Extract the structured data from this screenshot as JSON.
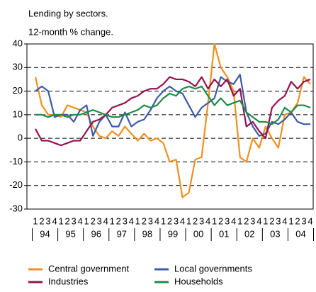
{
  "chart_data": {
    "type": "line",
    "title": "Lending by sectors.",
    "subtitle": "12-month % change.",
    "categories": [
      "1",
      "2",
      "3",
      "4",
      "1",
      "2",
      "3",
      "4",
      "1",
      "2",
      "3",
      "4",
      "1",
      "2",
      "3",
      "4",
      "1",
      "2",
      "3",
      "4",
      "1",
      "2",
      "3",
      "4",
      "1",
      "2",
      "3",
      "4",
      "1",
      "2",
      "3",
      "4",
      "1",
      "2",
      "3",
      "4",
      "1",
      "2",
      "3",
      "4",
      "1",
      "2",
      "3",
      "4"
    ],
    "year_labels": [
      "94",
      "95",
      "96",
      "97",
      "98",
      "99",
      "00",
      "01",
      "02",
      "03",
      "04"
    ],
    "ylim": [
      -30,
      40
    ],
    "yticks": [
      -30,
      -20,
      -10,
      0,
      10,
      20,
      30,
      40
    ],
    "grid": true,
    "series": [
      {
        "name": "Central government",
        "color": "#f0901e",
        "values": [
          26,
          14,
          10,
          10,
          9,
          14,
          13,
          12,
          11,
          5,
          1,
          0,
          3,
          1,
          5,
          2,
          -1,
          2,
          -1,
          0,
          -2,
          -10,
          -9,
          -25,
          -23,
          -9,
          -8,
          15,
          40,
          30,
          26,
          20,
          -8,
          -10,
          0,
          -4,
          5,
          0,
          -4,
          10,
          11,
          15,
          26,
          23
        ]
      },
      {
        "name": "Local governments",
        "color": "#3c5aa8",
        "values": [
          20,
          22,
          20,
          9,
          10,
          10,
          7,
          12,
          14,
          1,
          7,
          10,
          5,
          5,
          11,
          5,
          7,
          8,
          12,
          17,
          20,
          22,
          20,
          19,
          14,
          9,
          13,
          15,
          17,
          26,
          24,
          23,
          27,
          11,
          5,
          1,
          2,
          7,
          6,
          8,
          11,
          7,
          6,
          6
        ]
      },
      {
        "name": "Industries",
        "color": "#96124f",
        "values": [
          4,
          -1,
          -1,
          -2,
          -3,
          -2,
          -1,
          -1,
          3,
          7,
          8,
          10,
          13,
          14,
          15,
          17,
          18,
          20,
          21,
          21,
          23,
          26,
          25,
          25,
          24,
          22,
          26,
          21,
          25,
          22,
          25,
          18,
          21,
          5,
          7,
          3,
          0,
          13,
          16,
          18,
          24,
          21,
          24,
          25
        ]
      },
      {
        "name": "Households",
        "color": "#1e8c46",
        "values": [
          10,
          10,
          9,
          10,
          10,
          9,
          10,
          10,
          11,
          12,
          11,
          10,
          9,
          9,
          10,
          11,
          12,
          14,
          13,
          14,
          17,
          19,
          18,
          21,
          22,
          21,
          22,
          18,
          14,
          17,
          14,
          15,
          16,
          11,
          9,
          7,
          7,
          6,
          8,
          13,
          11,
          14,
          14,
          13
        ]
      }
    ]
  }
}
